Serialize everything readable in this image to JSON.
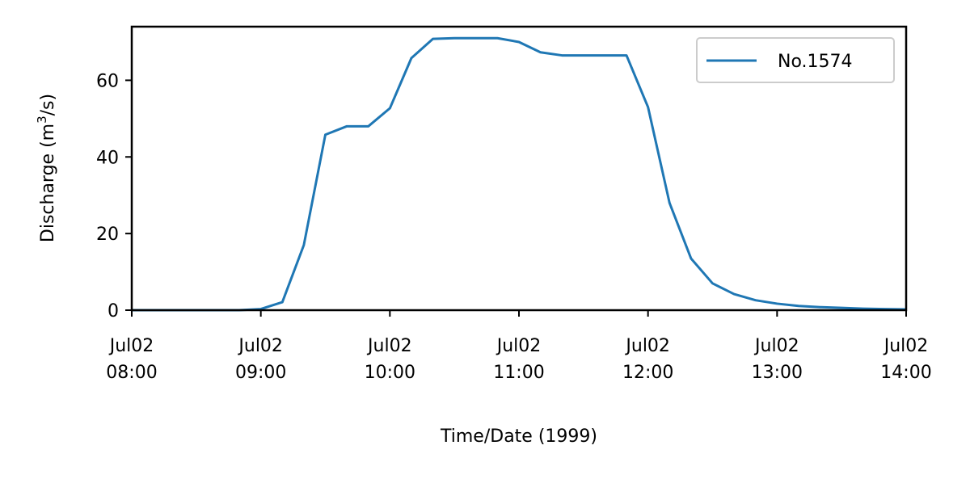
{
  "chart_data": {
    "type": "line",
    "title": "",
    "xlabel": "Time/Date (1999)",
    "ylabel_main": "Discharge (m",
    "ylabel_sup": "3",
    "ylabel_end": "/s)",
    "xlim": [
      0,
      6
    ],
    "ylim": [
      0,
      74
    ],
    "x_unit": "hours since Jul02 08:00",
    "x_ticks": [
      {
        "value": 0,
        "line1": "Jul02",
        "line2": "08:00"
      },
      {
        "value": 1,
        "line1": "Jul02",
        "line2": "09:00"
      },
      {
        "value": 2,
        "line1": "Jul02",
        "line2": "10:00"
      },
      {
        "value": 3,
        "line1": "Jul02",
        "line2": "11:00"
      },
      {
        "value": 4,
        "line1": "Jul02",
        "line2": "12:00"
      },
      {
        "value": 5,
        "line1": "Jul02",
        "line2": "13:00"
      },
      {
        "value": 6,
        "line1": "Jul02",
        "line2": "14:00"
      }
    ],
    "y_ticks": [
      {
        "value": 0,
        "label": "0"
      },
      {
        "value": 20,
        "label": "20"
      },
      {
        "value": 40,
        "label": "40"
      },
      {
        "value": 60,
        "label": "60"
      }
    ],
    "legend_position": "top-right",
    "grid": false,
    "series": [
      {
        "name": "No.1574",
        "color": "#1f77b4",
        "x": [
          0,
          0.1667,
          0.3333,
          0.5,
          0.6667,
          0.8333,
          1.0,
          1.1667,
          1.3333,
          1.5,
          1.6667,
          1.8333,
          2.0,
          2.1667,
          2.3333,
          2.5,
          2.6667,
          2.8333,
          3.0,
          3.1667,
          3.3333,
          3.5,
          3.6667,
          3.8333,
          4.0,
          4.1667,
          4.3333,
          4.5,
          4.6667,
          4.8333,
          5.0,
          5.1667,
          5.3333,
          5.5,
          5.6667,
          5.8333,
          6.0
        ],
        "y": [
          0,
          0,
          0,
          0,
          0,
          0,
          0.3,
          2.1,
          17,
          45.8,
          48,
          48,
          52.7,
          65.8,
          70.8,
          71,
          71,
          71,
          70,
          67.3,
          66.5,
          66.5,
          66.5,
          66.5,
          53,
          28,
          13.5,
          7,
          4.2,
          2.6,
          1.7,
          1.1,
          0.8,
          0.6,
          0.4,
          0.3,
          0.2
        ]
      }
    ]
  }
}
